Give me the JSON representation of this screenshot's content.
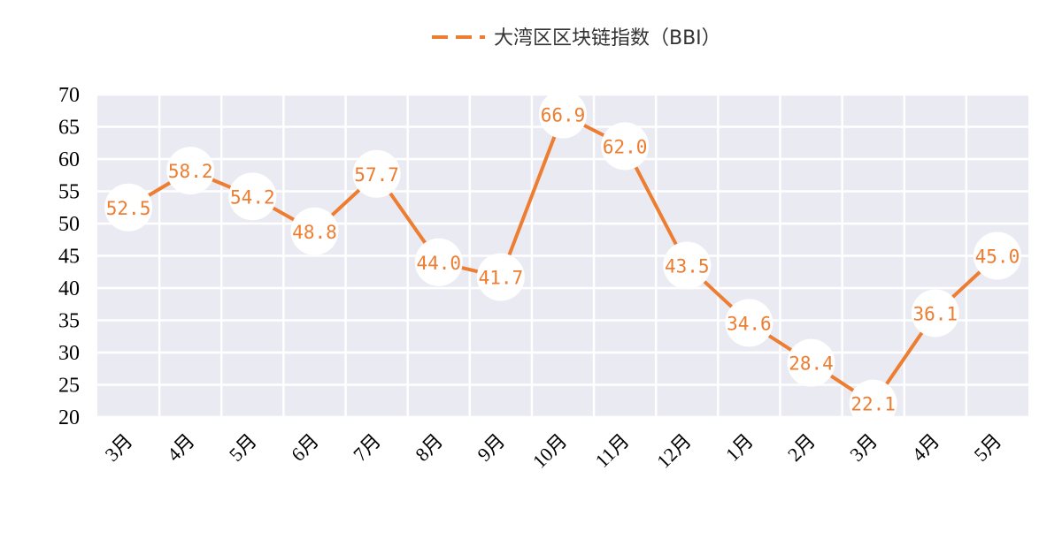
{
  "chart_data": {
    "type": "line",
    "categories": [
      "3月",
      "4月",
      "5月",
      "6月",
      "7月",
      "8月",
      "9月",
      "10月",
      "11月",
      "12月",
      "1月",
      "2月",
      "3月",
      "4月",
      "5月"
    ],
    "series": [
      {
        "name": "大湾区区块链指数（BBI）",
        "values": [
          52.5,
          58.2,
          54.2,
          48.8,
          57.7,
          44.0,
          41.7,
          66.9,
          62.0,
          43.5,
          34.6,
          28.4,
          22.1,
          36.1,
          45.0
        ],
        "labels": [
          "52.5",
          "58.2",
          "54.2",
          "48.8",
          "57.7",
          "44.0",
          "41.7",
          "66.9",
          "62.0",
          "43.5",
          "34.6",
          "28.4",
          "22.1",
          "36.1",
          "45.0"
        ]
      }
    ],
    "ylim": [
      20,
      70
    ],
    "yticks": [
      "20",
      "25",
      "30",
      "35",
      "40",
      "45",
      "50",
      "55",
      "60",
      "65",
      "70"
    ],
    "grid": true,
    "legend_position": "top-center",
    "colors": {
      "line": "#ED7D31",
      "plot_bg": "#EAEAF2",
      "grid": "#FFFFFF",
      "marker": "#FFFFFF"
    }
  }
}
